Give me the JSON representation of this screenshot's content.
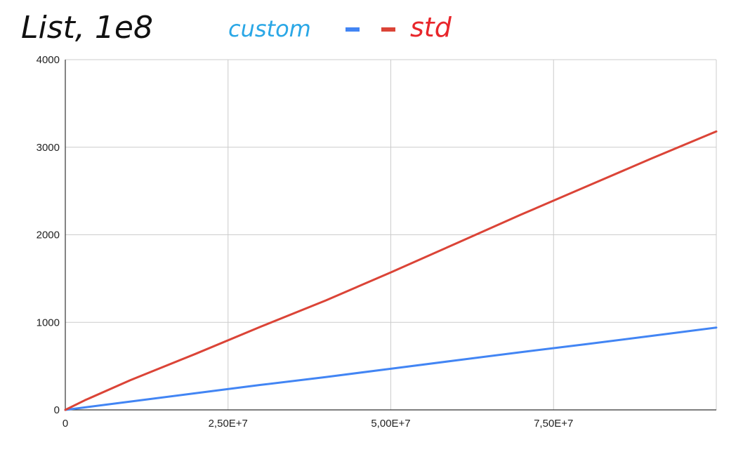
{
  "chart_data": {
    "type": "line",
    "title": "List, 1e8",
    "legend": {
      "placement": "top",
      "entries": [
        {
          "label": "custom",
          "color": "#2aa7e6"
        },
        {
          "label": "std",
          "color": "#e8262b"
        }
      ],
      "markers": [
        {
          "color": "#4285f4"
        },
        {
          "color": "#db4437"
        }
      ]
    },
    "xlabel": "",
    "ylabel": "",
    "xlim": [
      0,
      100000000
    ],
    "ylim": [
      0,
      4000
    ],
    "x_ticks": [
      "0",
      "2,50E+7",
      "5,00E+7",
      "7,50E+7"
    ],
    "x_tick_values": [
      0,
      25000000,
      50000000,
      75000000
    ],
    "y_ticks": [
      "0",
      "1000",
      "2000",
      "3000",
      "4000"
    ],
    "y_tick_values": [
      0,
      1000,
      2000,
      3000,
      4000
    ],
    "grid": true,
    "series": [
      {
        "color": "#4285f4",
        "x": [
          0,
          10000000,
          20000000,
          30000000,
          40000000,
          50000000,
          60000000,
          70000000,
          80000000,
          90000000,
          100000000
        ],
        "y": [
          0,
          95,
          190,
          285,
          375,
          470,
          565,
          660,
          750,
          845,
          940
        ]
      },
      {
        "color": "#db4437",
        "x": [
          0,
          3000000,
          10000000,
          20000000,
          30000000,
          40000000,
          50000000,
          60000000,
          70000000,
          80000000,
          90000000,
          100000000
        ],
        "y": [
          0,
          110,
          340,
          640,
          950,
          1250,
          1570,
          1900,
          2230,
          2550,
          2870,
          3180
        ]
      }
    ]
  }
}
